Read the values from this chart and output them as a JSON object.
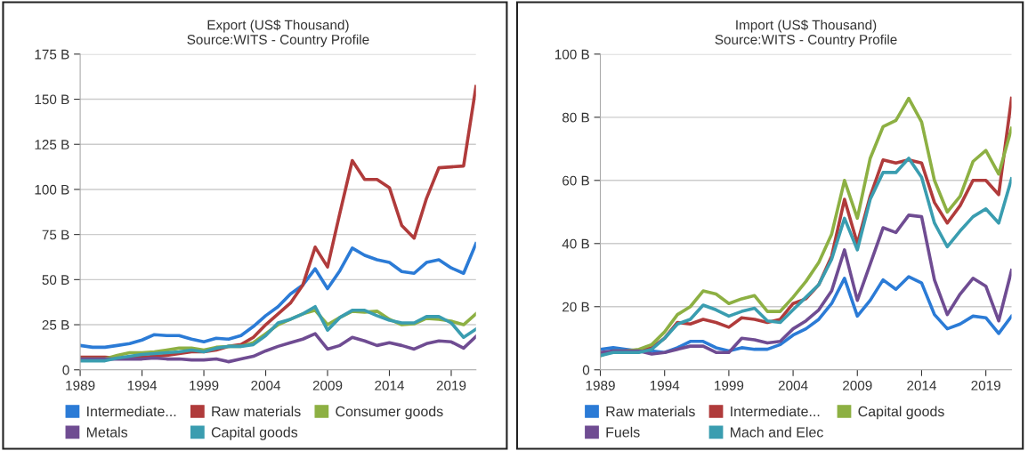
{
  "chart_data": [
    {
      "type": "line",
      "title": "Export (US$ Thousand)",
      "subtitle": "Source:WITS - Country Profile",
      "x": [
        1989,
        1990,
        1991,
        1992,
        1993,
        1994,
        1995,
        1996,
        1997,
        1998,
        1999,
        2000,
        2001,
        2002,
        2003,
        2004,
        2005,
        2006,
        2007,
        2008,
        2009,
        2010,
        2011,
        2012,
        2013,
        2014,
        2015,
        2016,
        2017,
        2018,
        2019,
        2020,
        2021
      ],
      "xlim": [
        1989,
        2021
      ],
      "xticks": [
        1989,
        1994,
        1999,
        2004,
        2009,
        2014,
        2019
      ],
      "ylim": [
        0,
        175
      ],
      "yticks": [
        0,
        {
          "value": 25,
          "label": "25 B"
        },
        {
          "value": 50,
          "label": "50 B"
        },
        {
          "value": 75,
          "label": "75 B"
        },
        {
          "value": 100,
          "label": "100 B"
        },
        {
          "value": 125,
          "label": "125 B"
        },
        {
          "value": 150,
          "label": "150 B"
        },
        {
          "value": 175,
          "label": "175 B"
        }
      ],
      "grid": "y",
      "legend": "bottom",
      "marker": "none",
      "line_style": "solid",
      "series": [
        {
          "name": "Intermediate...",
          "color": "#2b7bd6",
          "values": [
            13.5,
            12.5,
            12.5,
            13.5,
            14.5,
            16.5,
            19.5,
            19,
            19,
            17,
            15.5,
            17.5,
            17,
            19,
            24,
            30,
            35,
            42,
            47,
            56,
            45,
            55,
            67.5,
            63.5,
            61,
            59.5,
            54.5,
            53.5,
            59.5,
            61,
            56.5,
            53.5,
            70
          ]
        },
        {
          "name": "Raw materials",
          "color": "#b03b3b",
          "values": [
            7,
            7,
            7,
            6.5,
            6.5,
            7,
            7.5,
            8,
            9,
            10,
            10,
            11,
            13,
            14,
            18,
            25,
            31,
            37,
            47,
            68,
            57,
            87,
            116,
            105.5,
            105.5,
            101,
            80,
            73,
            95,
            112,
            112.5,
            113,
            157
          ]
        },
        {
          "name": "Consumer goods",
          "color": "#8db043",
          "values": [
            6,
            6,
            6,
            8,
            9.5,
            9.5,
            10,
            11,
            12,
            12,
            11,
            12.5,
            13,
            13,
            15,
            20,
            25,
            28,
            31,
            33,
            25,
            29,
            32.5,
            32,
            32.5,
            28,
            25,
            25.5,
            28.5,
            28,
            27,
            25,
            31
          ]
        },
        {
          "name": "Metals",
          "color": "#6f4c92",
          "values": [
            6,
            6,
            6,
            6,
            6,
            6,
            6.5,
            6,
            6,
            5.5,
            5.5,
            6,
            4.5,
            6,
            7.5,
            10.5,
            13,
            15,
            17,
            20,
            11.5,
            13.5,
            18,
            16,
            13.5,
            15,
            13.5,
            11.5,
            14.5,
            16,
            15.5,
            12,
            18.5
          ]
        },
        {
          "name": "Capital goods",
          "color": "#3a9db0",
          "values": [
            5,
            5,
            5,
            6.5,
            7.5,
            8.5,
            9,
            9.5,
            10,
            11,
            10,
            12,
            13,
            13,
            14,
            19,
            26,
            28,
            31,
            35,
            22,
            29,
            33,
            33,
            30,
            27.5,
            26,
            26,
            29.5,
            29.5,
            26,
            18,
            22.5
          ]
        }
      ]
    },
    {
      "type": "line",
      "title": "Import (US$ Thousand)",
      "subtitle": "Source:WITS - Country Profile",
      "x": [
        1989,
        1990,
        1991,
        1992,
        1993,
        1994,
        1995,
        1996,
        1997,
        1998,
        1999,
        2000,
        2001,
        2002,
        2003,
        2004,
        2005,
        2006,
        2007,
        2008,
        2009,
        2010,
        2011,
        2012,
        2013,
        2014,
        2015,
        2016,
        2017,
        2018,
        2019,
        2020,
        2021
      ],
      "xlim": [
        1989,
        2021
      ],
      "xticks": [
        1989,
        1994,
        1999,
        2004,
        2009,
        2014,
        2019
      ],
      "ylim": [
        0,
        100
      ],
      "yticks": [
        0,
        {
          "value": 20,
          "label": "20 B"
        },
        {
          "value": 40,
          "label": "40 B"
        },
        {
          "value": 60,
          "label": "60 B"
        },
        {
          "value": 80,
          "label": "80 B"
        },
        {
          "value": 100,
          "label": "100 B"
        }
      ],
      "grid": "y",
      "legend": "bottom",
      "marker": "none",
      "line_style": "solid",
      "series": [
        {
          "name": "Raw materials",
          "color": "#2b7bd6",
          "values": [
            6.5,
            7,
            6.5,
            6,
            6,
            5.5,
            7,
            9,
            9,
            7,
            6,
            7,
            6.5,
            6.5,
            8,
            11,
            13,
            16,
            21,
            29,
            17,
            22,
            28.5,
            25.5,
            29.5,
            27.5,
            17.5,
            13,
            14.5,
            17,
            16.5,
            11.5,
            17
          ]
        },
        {
          "name": "Intermediate...",
          "color": "#b03b3b",
          "values": [
            null,
            null,
            6,
            6,
            7,
            10,
            15,
            14.5,
            16,
            15,
            13.5,
            16.5,
            16,
            15,
            16,
            21,
            22.5,
            27,
            36,
            54,
            40,
            55,
            66.5,
            65.5,
            66.5,
            65.5,
            53,
            46.5,
            52,
            60,
            60,
            55.5,
            86
          ]
        },
        {
          "name": "Capital goods",
          "color": "#8db043",
          "values": [
            4.5,
            6,
            6,
            6.5,
            8,
            12,
            17.5,
            20,
            25,
            24,
            21,
            22.5,
            23.5,
            18.5,
            18.5,
            23,
            28,
            34,
            43,
            60,
            48,
            67,
            77,
            79,
            86,
            78.5,
            60,
            50,
            55,
            66,
            69.5,
            62,
            76.5
          ]
        },
        {
          "name": "Fuels",
          "color": "#6f4c92",
          "values": [
            5.5,
            6,
            6,
            6,
            5,
            5.5,
            6.5,
            7.5,
            7.5,
            5.5,
            5.5,
            10,
            9.5,
            8.5,
            9,
            13,
            15.5,
            19,
            25,
            38,
            22,
            33.5,
            45,
            43.5,
            49,
            48.5,
            28.5,
            17.5,
            24,
            29,
            26.5,
            15.5,
            31.5
          ]
        },
        {
          "name": "Mach and Elec",
          "color": "#3a9db0",
          "values": [
            4.5,
            5.5,
            5.5,
            5.5,
            6.5,
            10,
            14.5,
            16,
            20.5,
            19,
            17,
            18.5,
            19.5,
            15.5,
            15,
            19,
            23,
            27,
            35,
            48,
            38,
            54,
            62.5,
            62.5,
            67,
            61,
            46.5,
            39,
            44,
            48.5,
            51,
            46.5,
            60.5
          ]
        }
      ]
    }
  ]
}
